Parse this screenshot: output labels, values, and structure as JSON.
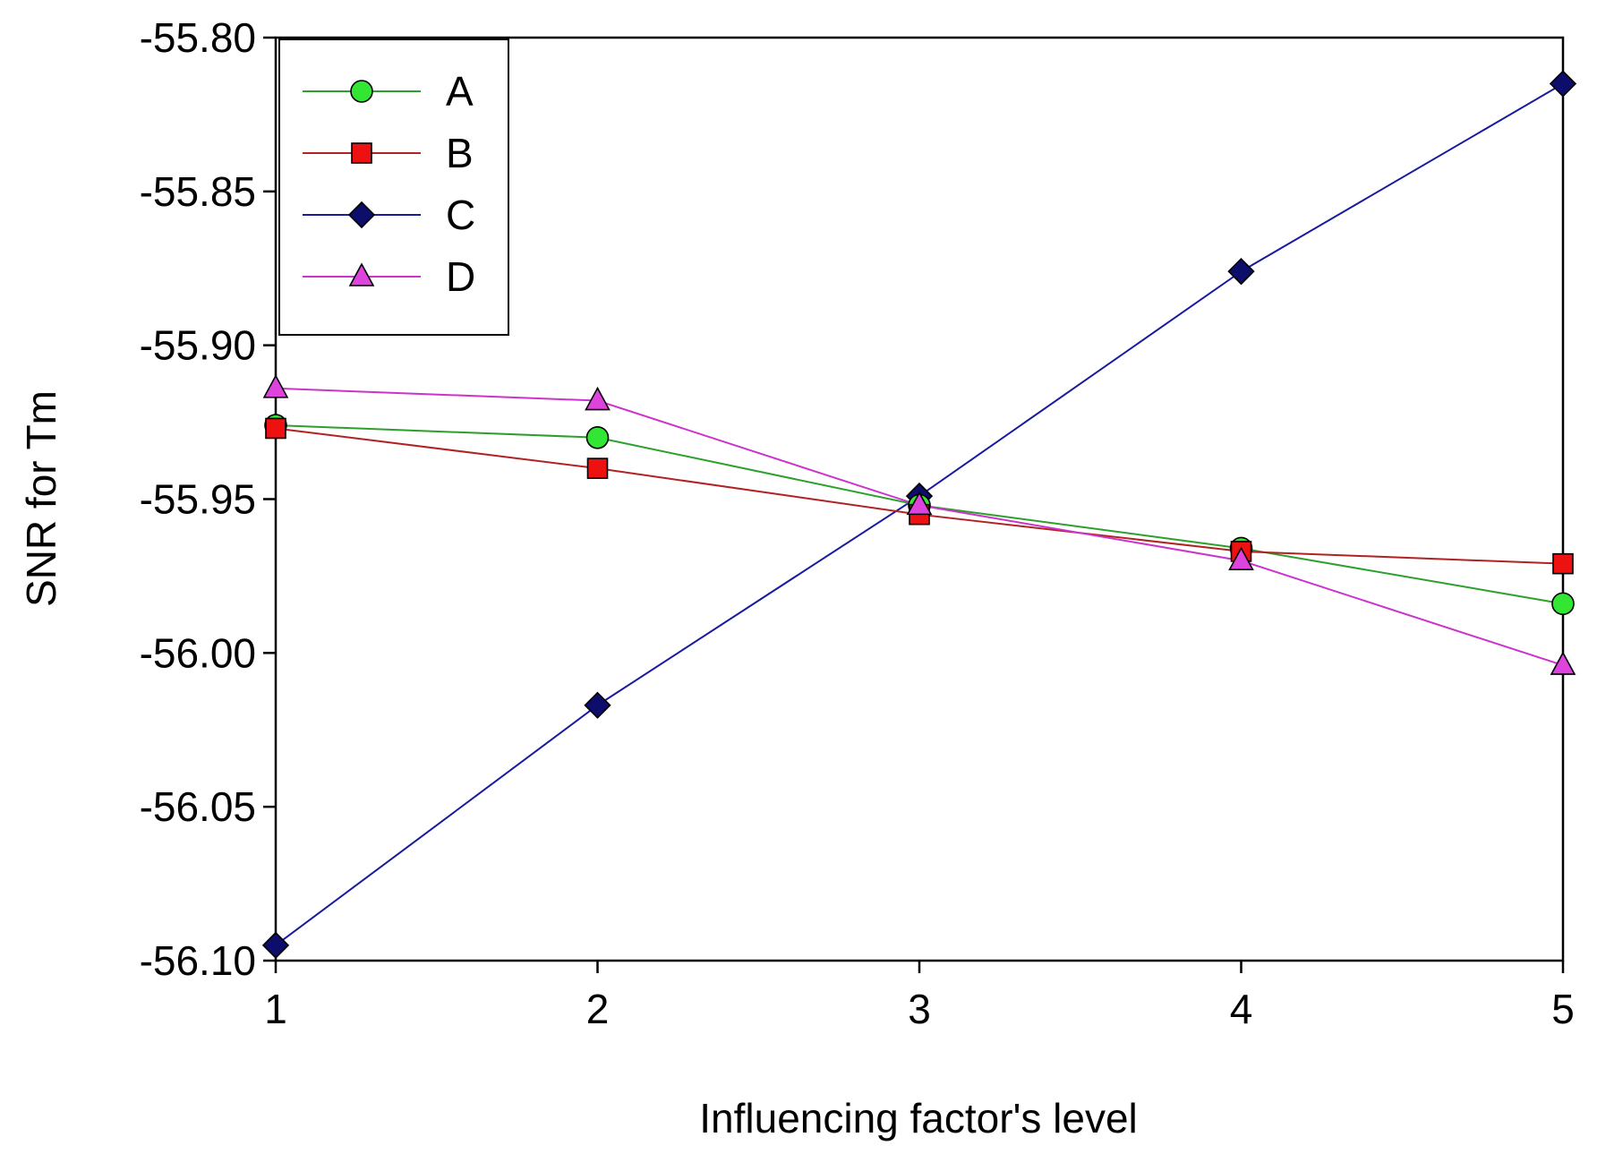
{
  "chart_data": {
    "type": "line",
    "title": "",
    "xlabel": "Influencing factor's level",
    "ylabel": "SNR for Tm",
    "x": [
      1,
      2,
      3,
      4,
      5
    ],
    "xlim": [
      1,
      5
    ],
    "ylim": [
      -56.1,
      -55.8
    ],
    "x_ticks": [
      1,
      2,
      3,
      4,
      5
    ],
    "x_tick_labels": [
      "1",
      "2",
      "3",
      "4",
      "5"
    ],
    "y_ticks": [
      -55.8,
      -55.85,
      -55.9,
      -55.95,
      -56.0,
      -56.05,
      -56.1
    ],
    "y_tick_labels": [
      "-55.80",
      "-55.85",
      "-55.90",
      "-55.95",
      "-56.00",
      "-56.05",
      "-56.10"
    ],
    "grid": false,
    "legend_position": "top-left",
    "series": [
      {
        "name": "A",
        "marker": "circle",
        "line_color": "#2ca02c",
        "fill_color": "#33e633",
        "values": [
          -55.926,
          -55.93,
          -55.952,
          -55.966,
          -55.984
        ]
      },
      {
        "name": "B",
        "marker": "square",
        "line_color": "#b22222",
        "fill_color": "#ee1111",
        "values": [
          -55.927,
          -55.94,
          -55.955,
          -55.967,
          -55.971
        ]
      },
      {
        "name": "C",
        "marker": "diamond",
        "line_color": "#1a1aa0",
        "fill_color": "#0d0d6b",
        "values": [
          -56.095,
          -56.017,
          -55.949,
          -55.876,
          -55.815
        ]
      },
      {
        "name": "D",
        "marker": "triangle",
        "line_color": "#cc33cc",
        "fill_color": "#dd44dd",
        "values": [
          -55.914,
          -55.918,
          -55.952,
          -55.97,
          -56.004
        ]
      }
    ]
  }
}
